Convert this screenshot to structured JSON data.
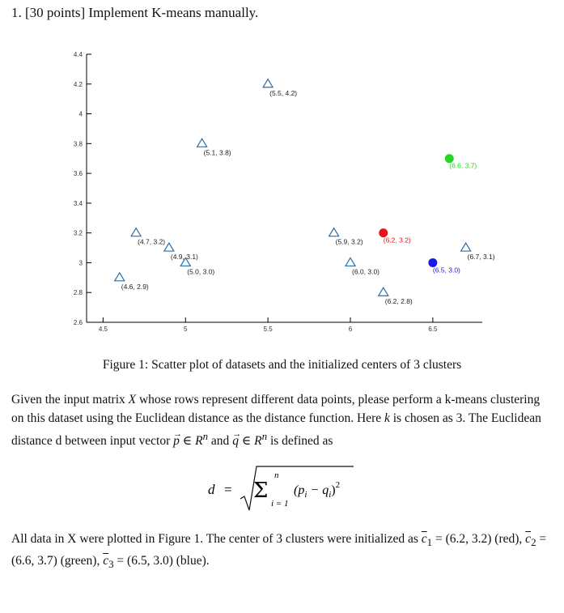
{
  "question": {
    "number": "1.",
    "points": "[30 points]",
    "title": "Implement K-means manually."
  },
  "chart_data": {
    "type": "scatter",
    "xlim": [
      4.4,
      6.8
    ],
    "ylim": [
      2.6,
      4.4
    ],
    "xticks": [
      4.5,
      5,
      5.5,
      6,
      6.5
    ],
    "xtick_labels": [
      "4.5",
      "5",
      "5.5",
      "6",
      "6.5"
    ],
    "yticks": [
      2.6,
      2.8,
      3,
      3.2,
      3.4,
      3.6,
      3.8,
      4,
      4.2,
      4.4
    ],
    "ytick_labels": [
      "2.6",
      "2.8",
      "3",
      "3.2",
      "3.4",
      "3.6",
      "3.8",
      "4",
      "4.2",
      "4.4"
    ],
    "series": [
      {
        "name": "data",
        "marker": "triangle",
        "color": "#2a6ea8",
        "points": [
          {
            "x": 4.6,
            "y": 2.9,
            "label": "(4.6, 2.9)"
          },
          {
            "x": 4.7,
            "y": 3.2,
            "label": "(4.7, 3.2)"
          },
          {
            "x": 4.9,
            "y": 3.1,
            "label": "(4.9, 3.1)"
          },
          {
            "x": 5.0,
            "y": 3.0,
            "label": "(5.0, 3.0)"
          },
          {
            "x": 5.1,
            "y": 3.8,
            "label": "(5.1, 3.8)"
          },
          {
            "x": 5.5,
            "y": 4.2,
            "label": "(5.5, 4.2)"
          },
          {
            "x": 5.9,
            "y": 3.2,
            "label": "(5.9, 3.2)"
          },
          {
            "x": 6.0,
            "y": 3.0,
            "label": "(6.0, 3.0)"
          },
          {
            "x": 6.2,
            "y": 2.8,
            "label": "(6.2, 2.8)"
          },
          {
            "x": 6.7,
            "y": 3.1,
            "label": "(6.7, 3.1)"
          }
        ]
      },
      {
        "name": "centers",
        "marker": "circle",
        "points": [
          {
            "x": 6.2,
            "y": 3.2,
            "label": "(6.2, 3.2)",
            "color": "#e8141a"
          },
          {
            "x": 6.6,
            "y": 3.7,
            "label": "(6.6, 3.7)",
            "color": "#22d622"
          },
          {
            "x": 6.5,
            "y": 3.0,
            "label": "(6.5, 3.0)",
            "color": "#1a1ae6"
          }
        ]
      }
    ]
  },
  "caption": "Figure 1: Scatter plot of datasets and the initialized centers of 3 clusters",
  "para1": {
    "t1": "Given the input matrix ",
    "X": "X",
    "t2": " whose rows represent different data points, please perform a k-means clustering on this dataset using the Euclidean distance as the distance function. Here ",
    "k": "k",
    "t3": " is chosen as 3. The Euclidean distance d between input vector ",
    "p": "p",
    "in1": " ∈ ",
    "R1": "R",
    "n1": "n",
    "and": " and ",
    "q": "q",
    "in2": " ∈ ",
    "R2": "R",
    "n2": "n",
    "t4": " is defined as"
  },
  "formula": {
    "lhs": "d",
    "eq": "=",
    "sigma": "Σ",
    "upper": "n",
    "lower": "i = 1",
    "body": "(p",
    "i1": "i",
    "minus": " − q",
    "i2": "i",
    "close": ")",
    "exp": "2"
  },
  "para2": {
    "t1": "All data in X were plotted in Figure 1. The center of 3 clusters were initialized as ",
    "c1": "c",
    "s1": "1",
    "v1": " = (6.2, 3.2)",
    "col1": " (red), ",
    "c2": "c",
    "s2": "2",
    "v2": " = (6.6, 3.7)",
    "col2": " (green), ",
    "c3": "c",
    "s3": "3",
    "v3": " = (6.5, 3.0)",
    "col3": " (blue)."
  }
}
